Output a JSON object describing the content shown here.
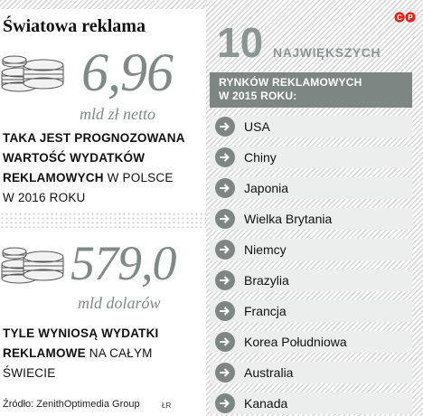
{
  "title": "Światowa reklama",
  "stat1": {
    "value": "6,96",
    "unit": "mld zł netto",
    "desc_bold_1": "TAKA JEST PROGNOZOWANA",
    "desc_bold_2": "WARTOŚĆ WYDATKÓW",
    "desc_bold_3": "REKLAMOWYCH",
    "desc_normal_3": " W POLSCE",
    "desc_normal_4": "W 2016 ROKU"
  },
  "stat2": {
    "value": "579,0",
    "unit": "mld dolarów",
    "desc_bold_1": "TYLE WYNIOSĄ WYDATKI",
    "desc_bold_2": "REKLAMOWE",
    "desc_normal_2": " NA CAŁYM",
    "desc_normal_3": "ŚWIECIE"
  },
  "ranking": {
    "number": "10",
    "heading": "NAJWIĘKSZYCH",
    "subheading_line1": "RYNKÓW REKLAMOWYCH",
    "subheading_line2": "W 2015 ROKU:",
    "items": [
      "USA",
      "Chiny",
      "Japonia",
      "Wielka Brytania",
      "Niemcy",
      "Brazylia",
      "Francja",
      "Korea Południowa",
      "Australia",
      "Kanada"
    ]
  },
  "source": "Źródło: ZenithOptimedia Group",
  "author": "ŁR",
  "logo": {
    "text": "CP",
    "color": "#e2231a"
  },
  "colors": {
    "accent_gray": "#7e8683",
    "row_bg": "#eceeed",
    "number_gray": "#7f8a87"
  }
}
